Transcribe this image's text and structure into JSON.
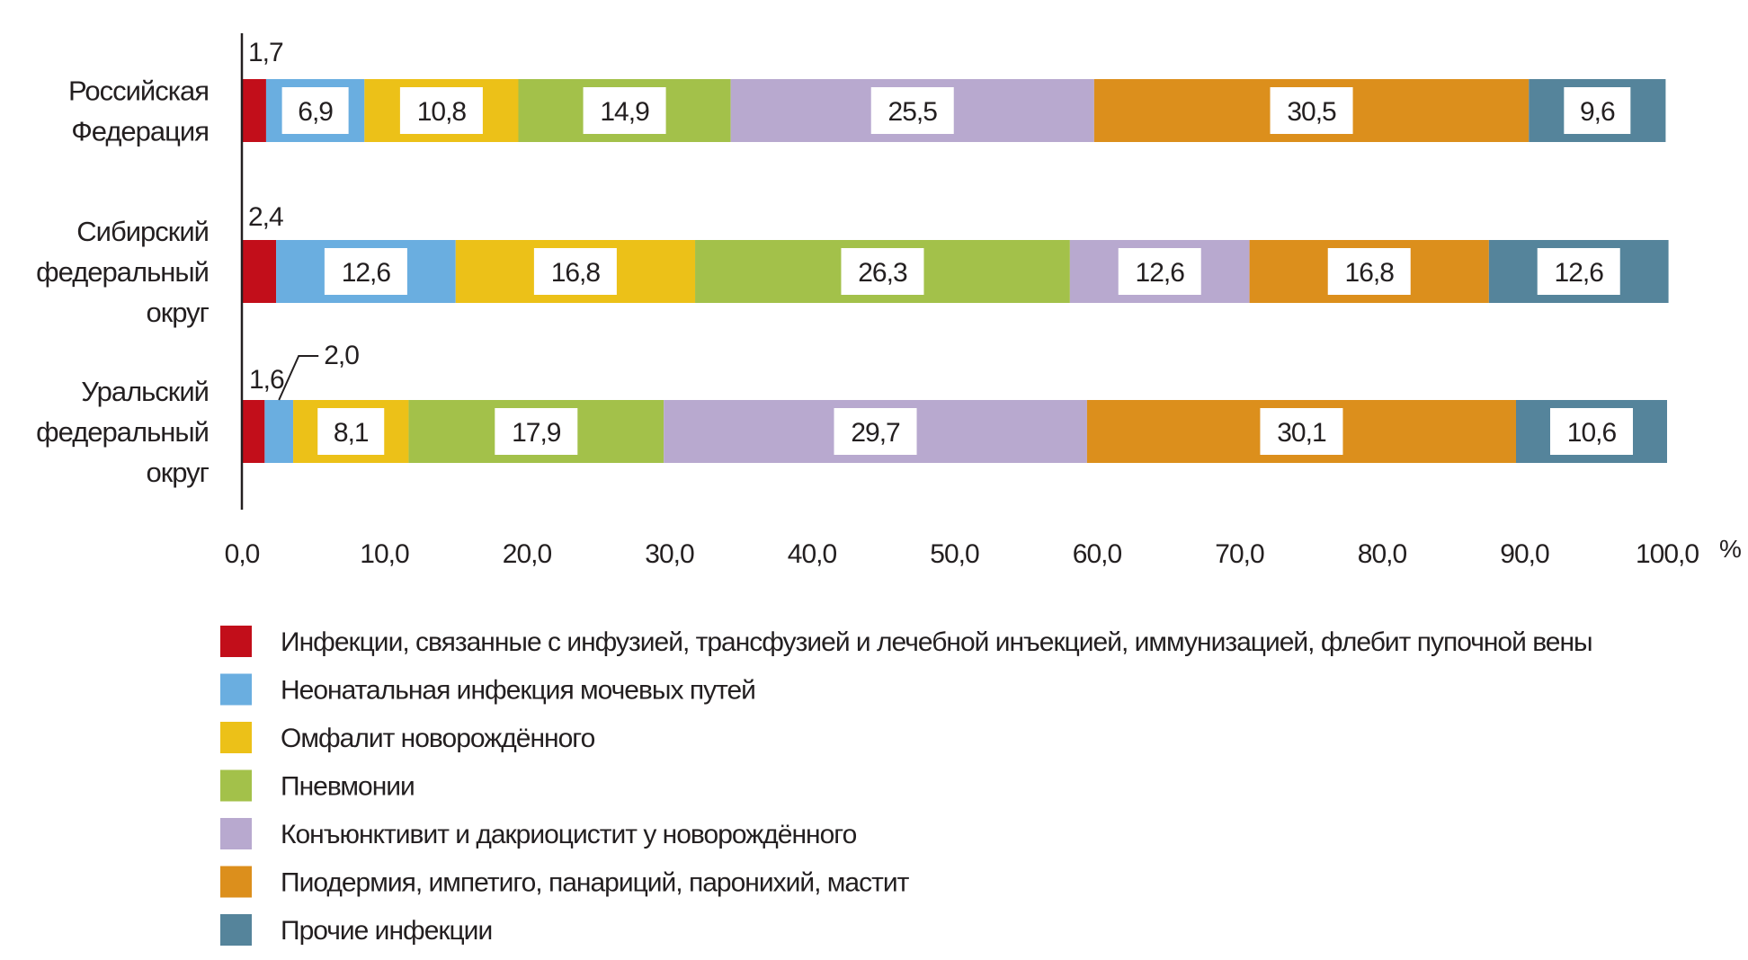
{
  "chart_data": {
    "type": "bar",
    "orientation": "horizontal-stacked",
    "unit_label": "%",
    "xlim": [
      0,
      100
    ],
    "x_ticks": [
      "0,0",
      "10,0",
      "20,0",
      "30,0",
      "40,0",
      "50,0",
      "60,0",
      "70,0",
      "80,0",
      "90,0",
      "100,0"
    ],
    "categories": [
      [
        "Российская",
        "Федерация"
      ],
      [
        "Сибирский",
        "федеральный",
        "округ"
      ],
      [
        "Уральский",
        "федеральный",
        "округ"
      ]
    ],
    "series": [
      {
        "name": "Инфекции, связанные с инфузией, трансфузией и лечебной инъекцией, иммунизацией, флебит пупочной вены",
        "color": "#c20e1a",
        "values": [
          1.7,
          2.4,
          1.6
        ],
        "labels": [
          "1,7",
          "2,4",
          "1,6"
        ]
      },
      {
        "name": "Неонатальная инфекция мочевых путей",
        "color": "#6aaee0",
        "values": [
          6.9,
          12.6,
          2.0
        ],
        "labels": [
          "6,9",
          "12,6",
          "2,0"
        ]
      },
      {
        "name": "Омфалит новорождённого",
        "color": "#ecc118",
        "values": [
          10.8,
          16.8,
          8.1
        ],
        "labels": [
          "10,8",
          "16,8",
          "8,1"
        ]
      },
      {
        "name": "Пневмонии",
        "color": "#a3c14a",
        "values": [
          14.9,
          26.3,
          17.9
        ],
        "labels": [
          "14,9",
          "26,3",
          "17,9"
        ]
      },
      {
        "name": "Конъюнктивит и дакриоцистит у новорождённого",
        "color": "#b8a9cf",
        "values": [
          25.5,
          12.6,
          29.7
        ],
        "labels": [
          "25,5",
          "12,6",
          "29,7"
        ]
      },
      {
        "name": "Пиодермия, импетиго, панариций, паронихий, мастит",
        "color": "#dc8f1c",
        "values": [
          30.5,
          16.8,
          30.1
        ],
        "labels": [
          "30,5",
          "16,8",
          "30,1"
        ]
      },
      {
        "name": "Прочие инфекции",
        "color": "#55849b",
        "values": [
          9.6,
          12.6,
          10.6
        ],
        "labels": [
          "9,6",
          "12,6",
          "10,6"
        ]
      }
    ],
    "legend_position": "bottom",
    "grid": false
  }
}
